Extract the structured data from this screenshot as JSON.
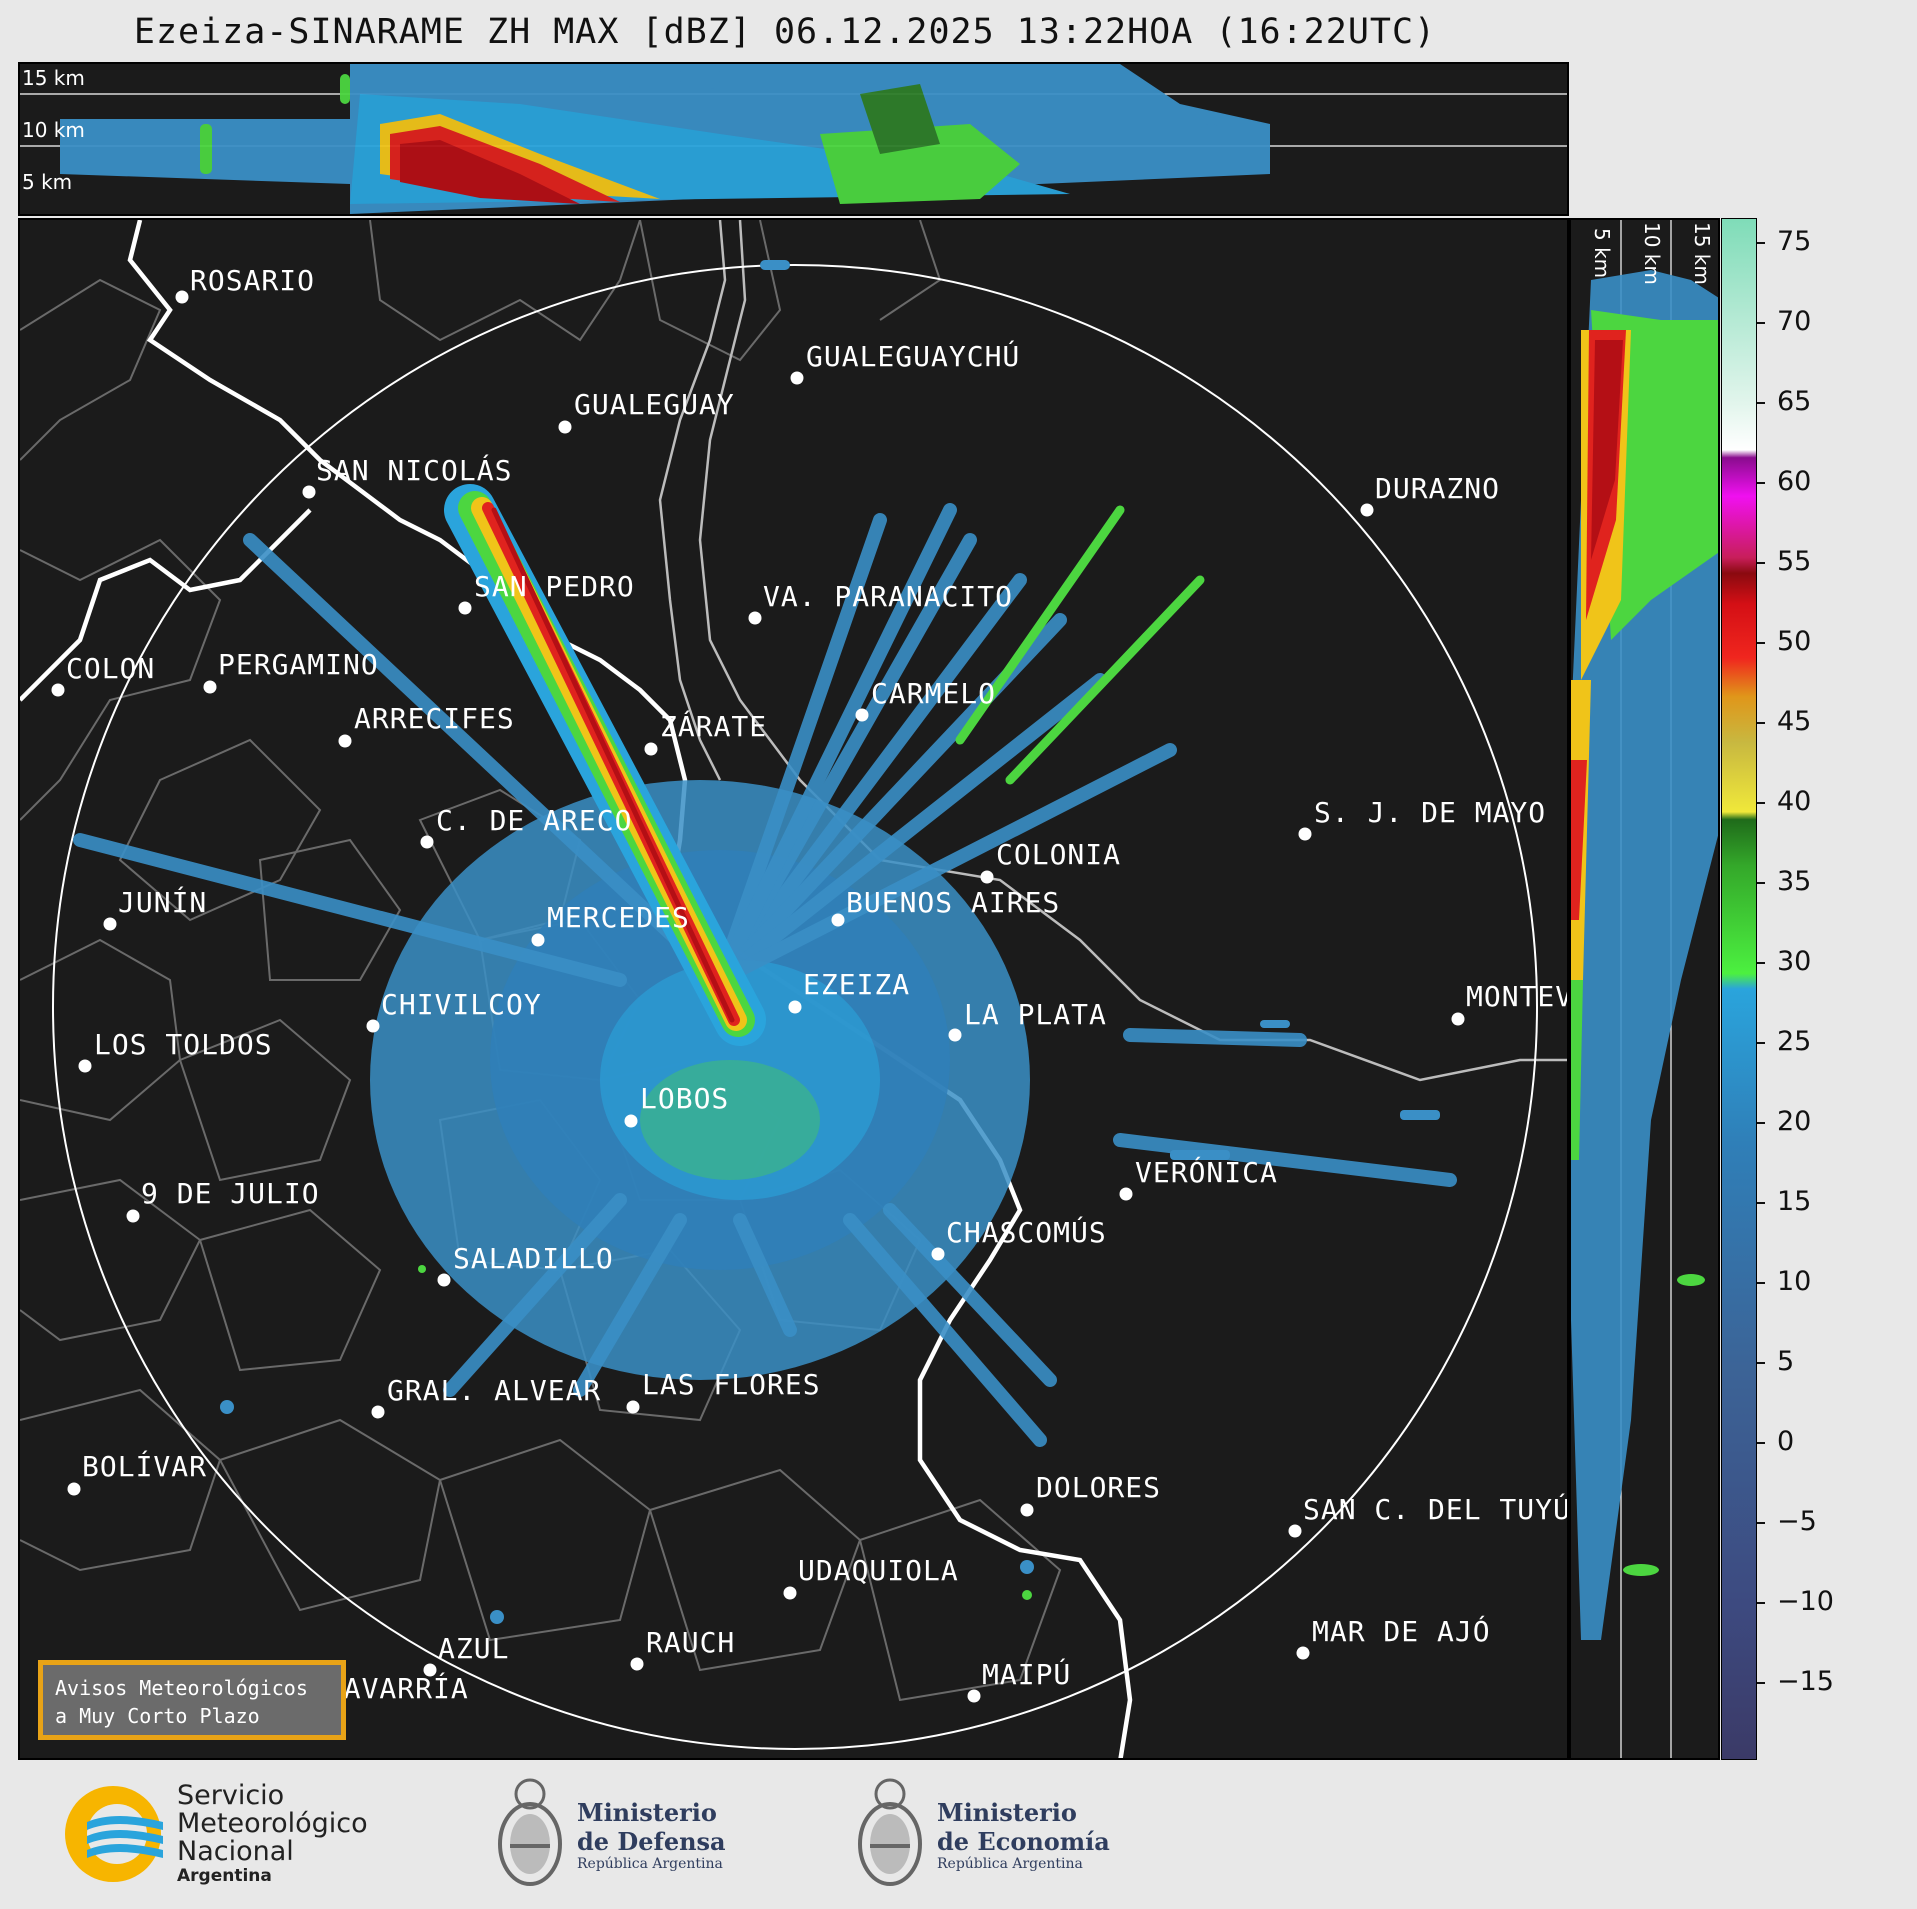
{
  "title": "Ezeiza-SINARAME ZH MAX [dBZ] 06.12.2025 13:22HOA (16:22UTC)",
  "top_panel": {
    "altitude_labels": [
      "15 km",
      "10 km",
      "5 km"
    ]
  },
  "side_panel": {
    "altitude_labels": [
      "5 km",
      "10 km",
      "15 km"
    ]
  },
  "colorbar": {
    "ticks": [
      "75",
      "70",
      "65",
      "60",
      "55",
      "50",
      "45",
      "40",
      "35",
      "30",
      "25",
      "20",
      "15",
      "10",
      "5",
      "0",
      "−5",
      "−10",
      "−15"
    ],
    "min": -20,
    "max": 76.5
  },
  "cities": [
    {
      "name": "ROSARIO"
    },
    {
      "name": "GUALEGUAYCHÚ"
    },
    {
      "name": "GUALEGUAY"
    },
    {
      "name": "SAN NICOLÁS"
    },
    {
      "name": "DURAZNO"
    },
    {
      "name": "SAN PEDRO"
    },
    {
      "name": "VA. PARANACITO"
    },
    {
      "name": "COLON"
    },
    {
      "name": "PERGAMINO"
    },
    {
      "name": "CARMELO"
    },
    {
      "name": "ARRECIFES"
    },
    {
      "name": "ZÁRATE"
    },
    {
      "name": "S. J. DE MAYO"
    },
    {
      "name": "C. DE ARECO"
    },
    {
      "name": "COLONIA"
    },
    {
      "name": "JUNÍN"
    },
    {
      "name": "BUENOS AIRES"
    },
    {
      "name": "MERCEDES"
    },
    {
      "name": "EZEIZA"
    },
    {
      "name": "MONTEV"
    },
    {
      "name": "CHIVILCOY"
    },
    {
      "name": "LA PLATA"
    },
    {
      "name": "LOS TOLDOS"
    },
    {
      "name": "LOBOS"
    },
    {
      "name": "VERÓNICA"
    },
    {
      "name": "9 DE JULIO"
    },
    {
      "name": "CHASCOMÚS"
    },
    {
      "name": "SALADILLO"
    },
    {
      "name": "GRAL. ALVEAR"
    },
    {
      "name": "LAS FLORES"
    },
    {
      "name": "BOLÍVAR"
    },
    {
      "name": "DOLORES"
    },
    {
      "name": "SAN C. DEL TUYÚ"
    },
    {
      "name": "UDAQUIOLA"
    },
    {
      "name": "AZUL"
    },
    {
      "name": "RAUCH"
    },
    {
      "name": "MAR DE AJÓ"
    },
    {
      "name": "MAIPÚ"
    },
    {
      "name": "OLAVARRÍA"
    }
  ],
  "avisos": {
    "line1": "Avisos Meteorológicos",
    "line2": "a Muy Corto Plazo"
  },
  "logos": {
    "smn": {
      "line1": "Servicio",
      "line2": "Meteorológico",
      "line3": "Nacional",
      "line4": "Argentina"
    },
    "defensa": {
      "line1": "Ministerio",
      "line2": "de Defensa",
      "line3": "República Argentina"
    },
    "economia": {
      "line1": "Ministerio",
      "line2": "de Economía",
      "line3": "República Argentina"
    }
  },
  "colors": {
    "background": "#1b1b1b",
    "accent_orange": "#e8a317",
    "smn_blue": "#2aa4dc",
    "smn_yellow": "#f7b500"
  }
}
